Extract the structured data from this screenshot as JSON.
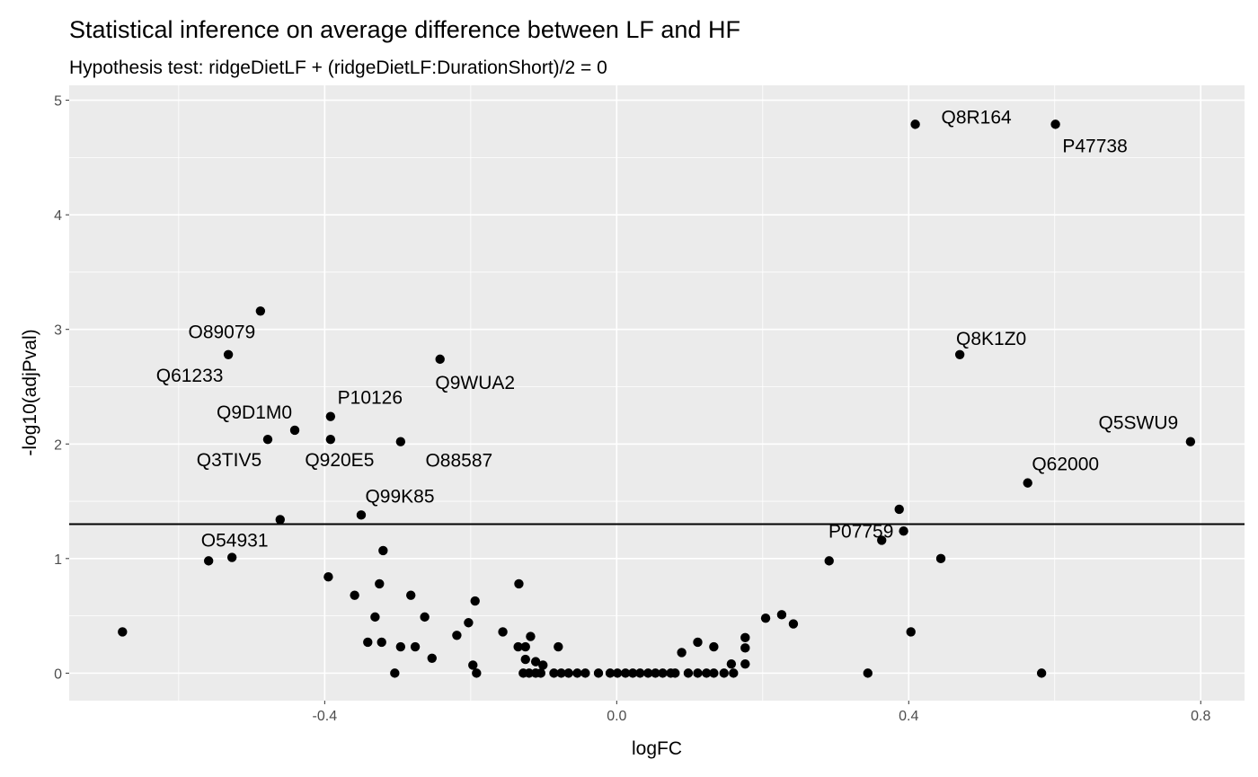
{
  "chart_data": {
    "type": "scatter",
    "title": "Statistical inference on average difference between LF and HF",
    "subtitle": "Hypothesis test: ridgeDietLF + (ridgeDietLF:DurationShort)/2 = 0",
    "xlabel": "logFC",
    "ylabel": "-log10(adjPval)",
    "xlim": [
      -0.75,
      0.86
    ],
    "ylim": [
      -0.24,
      5.13
    ],
    "xticks": [
      -0.4,
      0.0,
      0.4,
      0.8
    ],
    "xtick_labels": [
      "-0.4",
      "0.0",
      "0.4",
      "0.8"
    ],
    "yticks": [
      0,
      1,
      2,
      3,
      4,
      5
    ],
    "ytick_labels": [
      "0",
      "1",
      "2",
      "3",
      "4",
      "5"
    ],
    "grid": true,
    "background": "#EBEBEB",
    "point_color": "#000000",
    "hline": 1.3,
    "points": [
      {
        "x": -0.677,
        "y": 0.36
      },
      {
        "x": -0.559,
        "y": 0.98
      },
      {
        "x": -0.527,
        "y": 1.01,
        "label": "O54931"
      },
      {
        "x": -0.532,
        "y": 2.78,
        "label": "Q61233"
      },
      {
        "x": -0.488,
        "y": 3.16,
        "label": "O89079"
      },
      {
        "x": -0.478,
        "y": 2.04,
        "label": "Q3TIV5"
      },
      {
        "x": -0.461,
        "y": 1.34
      },
      {
        "x": -0.441,
        "y": 2.12,
        "label": "Q9D1M0"
      },
      {
        "x": -0.395,
        "y": 0.84
      },
      {
        "x": -0.392,
        "y": 2.24,
        "label": "P10126"
      },
      {
        "x": -0.392,
        "y": 2.04,
        "label": "Q920E5"
      },
      {
        "x": -0.359,
        "y": 0.68
      },
      {
        "x": -0.35,
        "y": 1.38,
        "label": "Q99K85"
      },
      {
        "x": -0.331,
        "y": 0.49
      },
      {
        "x": -0.341,
        "y": 0.27
      },
      {
        "x": -0.322,
        "y": 0.27
      },
      {
        "x": -0.325,
        "y": 0.78
      },
      {
        "x": -0.32,
        "y": 1.07
      },
      {
        "x": -0.304,
        "y": 0.0
      },
      {
        "x": -0.296,
        "y": 0.23
      },
      {
        "x": -0.296,
        "y": 2.02,
        "label": "O88587"
      },
      {
        "x": -0.282,
        "y": 0.68
      },
      {
        "x": -0.276,
        "y": 0.23
      },
      {
        "x": -0.263,
        "y": 0.49
      },
      {
        "x": -0.253,
        "y": 0.13
      },
      {
        "x": -0.242,
        "y": 2.74,
        "label": "Q9WUA2"
      },
      {
        "x": -0.219,
        "y": 0.33
      },
      {
        "x": -0.203,
        "y": 0.44
      },
      {
        "x": -0.197,
        "y": 0.07
      },
      {
        "x": -0.194,
        "y": 0.63
      },
      {
        "x": -0.192,
        "y": 0.0
      },
      {
        "x": -0.156,
        "y": 0.36
      },
      {
        "x": -0.134,
        "y": 0.78
      },
      {
        "x": -0.135,
        "y": 0.23
      },
      {
        "x": -0.125,
        "y": 0.23
      },
      {
        "x": -0.125,
        "y": 0.12
      },
      {
        "x": -0.118,
        "y": 0.32
      },
      {
        "x": -0.111,
        "y": 0.1
      },
      {
        "x": -0.101,
        "y": 0.07
      },
      {
        "x": -0.08,
        "y": 0.23
      },
      {
        "x": -0.128,
        "y": 0.0
      },
      {
        "x": -0.12,
        "y": 0.0
      },
      {
        "x": -0.111,
        "y": 0.0
      },
      {
        "x": -0.104,
        "y": 0.0
      },
      {
        "x": -0.086,
        "y": 0.0
      },
      {
        "x": -0.076,
        "y": 0.0
      },
      {
        "x": -0.066,
        "y": 0.0
      },
      {
        "x": -0.054,
        "y": 0.0
      },
      {
        "x": -0.043,
        "y": 0.0
      },
      {
        "x": -0.025,
        "y": 0.0
      },
      {
        "x": -0.009,
        "y": 0.0
      },
      {
        "x": 0.001,
        "y": 0.0
      },
      {
        "x": 0.012,
        "y": 0.0
      },
      {
        "x": 0.022,
        "y": 0.0
      },
      {
        "x": 0.032,
        "y": 0.0
      },
      {
        "x": 0.043,
        "y": 0.0
      },
      {
        "x": 0.053,
        "y": 0.0
      },
      {
        "x": 0.063,
        "y": 0.0
      },
      {
        "x": 0.074,
        "y": 0.0
      },
      {
        "x": 0.08,
        "y": 0.0
      },
      {
        "x": 0.098,
        "y": 0.0
      },
      {
        "x": 0.111,
        "y": 0.0
      },
      {
        "x": 0.123,
        "y": 0.0
      },
      {
        "x": 0.133,
        "y": 0.0
      },
      {
        "x": 0.147,
        "y": 0.0
      },
      {
        "x": 0.16,
        "y": 0.0
      },
      {
        "x": 0.089,
        "y": 0.18
      },
      {
        "x": 0.111,
        "y": 0.27
      },
      {
        "x": 0.133,
        "y": 0.23
      },
      {
        "x": 0.157,
        "y": 0.08
      },
      {
        "x": 0.176,
        "y": 0.31
      },
      {
        "x": 0.176,
        "y": 0.22
      },
      {
        "x": 0.176,
        "y": 0.08
      },
      {
        "x": 0.204,
        "y": 0.48
      },
      {
        "x": 0.226,
        "y": 0.51
      },
      {
        "x": 0.242,
        "y": 0.43
      },
      {
        "x": 0.291,
        "y": 0.98
      },
      {
        "x": 0.344,
        "y": 0.0
      },
      {
        "x": 0.363,
        "y": 1.16,
        "label": "P07759"
      },
      {
        "x": 0.387,
        "y": 1.43
      },
      {
        "x": 0.393,
        "y": 1.24
      },
      {
        "x": 0.403,
        "y": 0.36
      },
      {
        "x": 0.409,
        "y": 4.79,
        "label": "Q8R164"
      },
      {
        "x": 0.444,
        "y": 1.0
      },
      {
        "x": 0.47,
        "y": 2.78,
        "label": "Q8K1Z0"
      },
      {
        "x": 0.563,
        "y": 1.66,
        "label": "Q62000"
      },
      {
        "x": 0.582,
        "y": 0.0
      },
      {
        "x": 0.601,
        "y": 4.79,
        "label": "P47738"
      },
      {
        "x": 0.786,
        "y": 2.02,
        "label": "Q5SWU9"
      }
    ]
  }
}
